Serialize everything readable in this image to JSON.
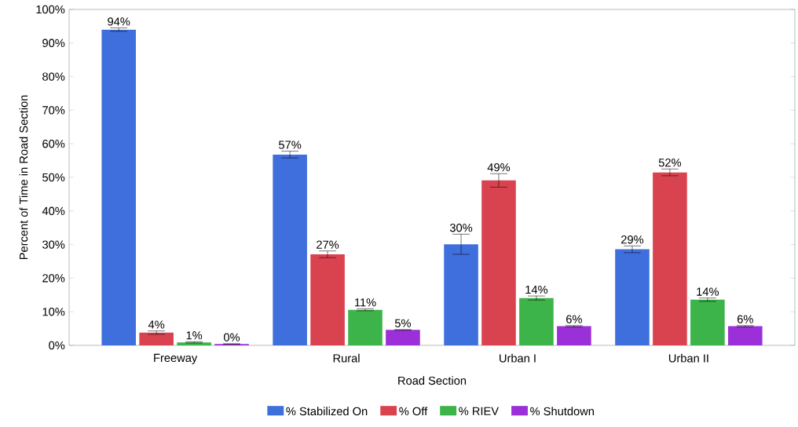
{
  "chart_data": {
    "type": "bar",
    "xlabel": "Road Section",
    "ylabel": "Percent of Time in Road Section",
    "categories": [
      "Freeway",
      "Rural",
      "Urban I",
      "Urban II"
    ],
    "series": [
      {
        "name": "% Stabilized On",
        "color": "#3f6fdc",
        "values": [
          94,
          56.8,
          30.1,
          28.6
        ],
        "errors": [
          0.5,
          1,
          3,
          1
        ],
        "value_labels": [
          "94%",
          "57%",
          "30%",
          "29%"
        ]
      },
      {
        "name": "% Off",
        "color": "#d9434f",
        "values": [
          3.8,
          27.1,
          49.1,
          51.5
        ],
        "errors": [
          0.5,
          1,
          2,
          1
        ],
        "value_labels": [
          "4%",
          "27%",
          "49%",
          "52%"
        ]
      },
      {
        "name": "% RIEV",
        "color": "#3cb44a",
        "values": [
          0.9,
          10.6,
          14.1,
          13.6
        ],
        "errors": [
          0.2,
          0.3,
          0.6,
          0.5
        ],
        "value_labels": [
          "1%",
          "11%",
          "14%",
          "14%"
        ]
      },
      {
        "name": "% Shutdown",
        "color": "#9b30d8",
        "values": [
          0.4,
          4.6,
          5.7,
          5.7
        ],
        "errors": [
          0.1,
          0.1,
          0.2,
          0.2
        ],
        "value_labels": [
          "0%",
          "5%",
          "6%",
          "6%"
        ]
      }
    ],
    "ylim": [
      0,
      100
    ],
    "yticks": [
      {
        "value": 0,
        "label": "0%"
      },
      {
        "value": 10,
        "label": "10%"
      },
      {
        "value": 20,
        "label": "20%"
      },
      {
        "value": 30,
        "label": "30%"
      },
      {
        "value": 40,
        "label": "40%"
      },
      {
        "value": 50,
        "label": "50%"
      },
      {
        "value": 60,
        "label": "60%"
      },
      {
        "value": 70,
        "label": "70%"
      },
      {
        "value": 80,
        "label": "80%"
      },
      {
        "value": 90,
        "label": "90%"
      },
      {
        "value": 100,
        "label": "100%"
      }
    ],
    "grid": false,
    "legend": "bottom"
  }
}
